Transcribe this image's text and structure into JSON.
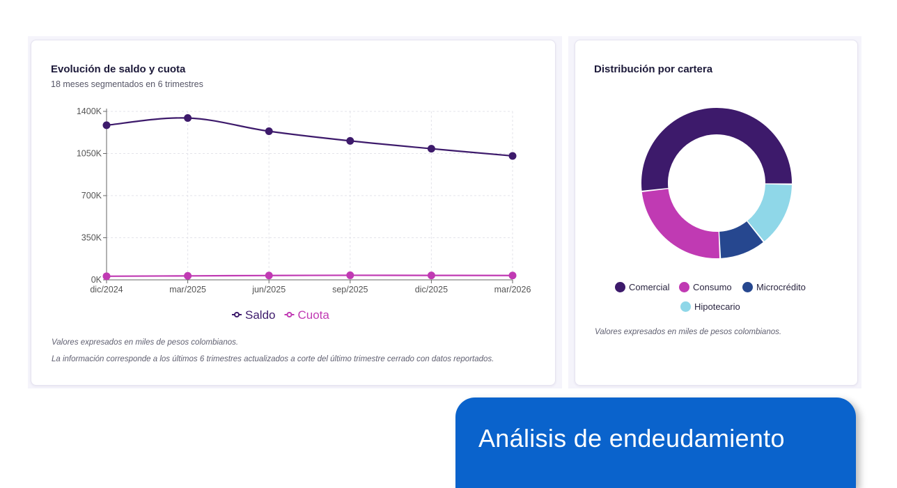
{
  "line_card": {
    "title": "Evolución de saldo y cuota",
    "subtitle": "18 meses segmentados en 6 trimestres",
    "note_1": "Valores expresados en miles de pesos colombianos.",
    "note_2": "La información corresponde a los últimos 6 trimestres actualizados a corte del último trimestre cerrado con datos reportados."
  },
  "donut_card": {
    "title": "Distribución por cartera",
    "note": "Valores expresados en miles de pesos colombianos."
  },
  "cta": {
    "label": "Análisis de endeudamiento"
  },
  "chart_data": [
    {
      "type": "line",
      "title": "Evolución de saldo y cuota",
      "subtitle": "18 meses segmentados en 6 trimestres",
      "categories": [
        "dic/2024",
        "mar/2025",
        "jun/2025",
        "sep/2025",
        "dic/2025",
        "mar/2026"
      ],
      "y_ticks": [
        "0K",
        "350K",
        "700K",
        "1050K",
        "1400K"
      ],
      "ylim": [
        0,
        1400
      ],
      "grid": true,
      "legend": "bottom",
      "series": [
        {
          "name": "Saldo",
          "color": "#3d1a6b",
          "values": [
            1285,
            1345,
            1235,
            1155,
            1090,
            1030
          ]
        },
        {
          "name": "Cuota",
          "color": "#c03ab3",
          "values": [
            30,
            33,
            36,
            38,
            37,
            36
          ]
        }
      ]
    },
    {
      "type": "pie",
      "title": "Distribución por cartera",
      "donut": true,
      "legend": "bottom",
      "slices": [
        {
          "name": "Comercial",
          "value": 52,
          "color": "#3d1a6b"
        },
        {
          "name": "Consumo",
          "value": 24,
          "color": "#c03ab3"
        },
        {
          "name": "Microcrédito",
          "value": 10,
          "color": "#26478f"
        },
        {
          "name": "Hipotecario",
          "value": 14,
          "color": "#8fd7e8"
        }
      ]
    }
  ]
}
